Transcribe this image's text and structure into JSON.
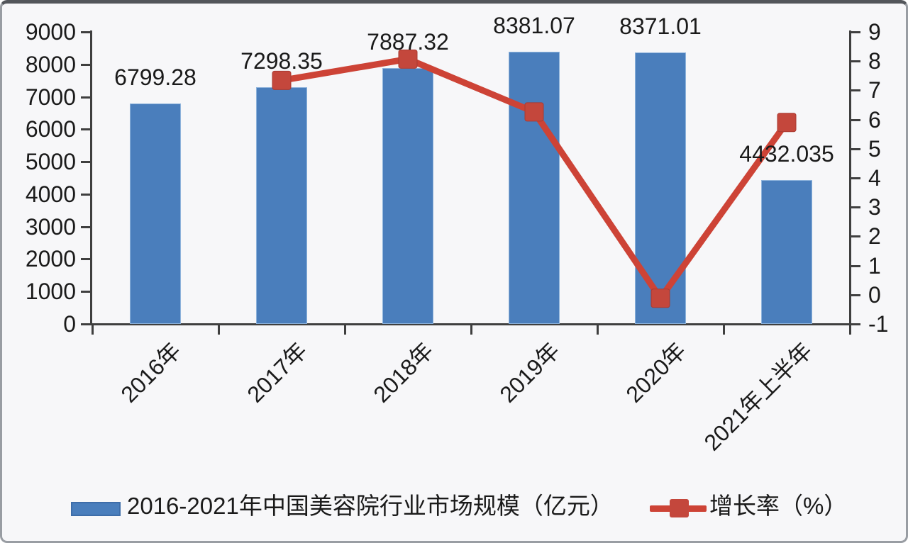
{
  "colors": {
    "bar": "#4a7ebc",
    "bar_border": "#8fb4dc",
    "line": "#cd4336",
    "marker": "#c4473c",
    "axis": "#3f3f3f",
    "text": "#1a1a1a",
    "background": "#f7f7f9",
    "frame_border": "#999da3",
    "frame_top": "#53565b"
  },
  "chart_data": {
    "type": "bar",
    "combo": "bar+line",
    "title": "",
    "categories": [
      "2016年",
      "2017年",
      "2018年",
      "2019年",
      "2020年",
      "2021年上半年"
    ],
    "series": [
      {
        "name": "2016-2021年中国美容院行业市场规模（亿元）",
        "type": "bar",
        "axis": "left",
        "color": "#4a7ebc",
        "values": [
          6799.28,
          7298.35,
          7887.32,
          8381.07,
          8371.01,
          4432.035
        ],
        "labels": [
          "6799.28",
          "7298.35",
          "7887.32",
          "8381.07",
          "8371.01",
          "4432.035"
        ]
      },
      {
        "name": "增长率（%）",
        "type": "line",
        "axis": "right",
        "color": "#cd4336",
        "marker": "square",
        "values": [
          null,
          7.34,
          8.07,
          6.26,
          -0.12,
          5.9
        ]
      }
    ],
    "left_axis": {
      "min": 0,
      "max": 9000,
      "step": 1000,
      "ticks": [
        "9000",
        "8000",
        "7000",
        "6000",
        "5000",
        "4000",
        "3000",
        "2000",
        "1000",
        "0"
      ]
    },
    "right_axis": {
      "min": -1,
      "max": 9,
      "step": 1,
      "ticks": [
        "9",
        "8",
        "7",
        "6",
        "5",
        "4",
        "3",
        "2",
        "1",
        "0",
        "-1"
      ]
    },
    "grid": false,
    "legend": {
      "position": "bottom",
      "items": [
        {
          "label": "2016-2021年中国美容院行业市场规模（亿元）",
          "swatch": "bar"
        },
        {
          "label": "增长率（%）",
          "swatch": "line-marker"
        }
      ]
    }
  }
}
